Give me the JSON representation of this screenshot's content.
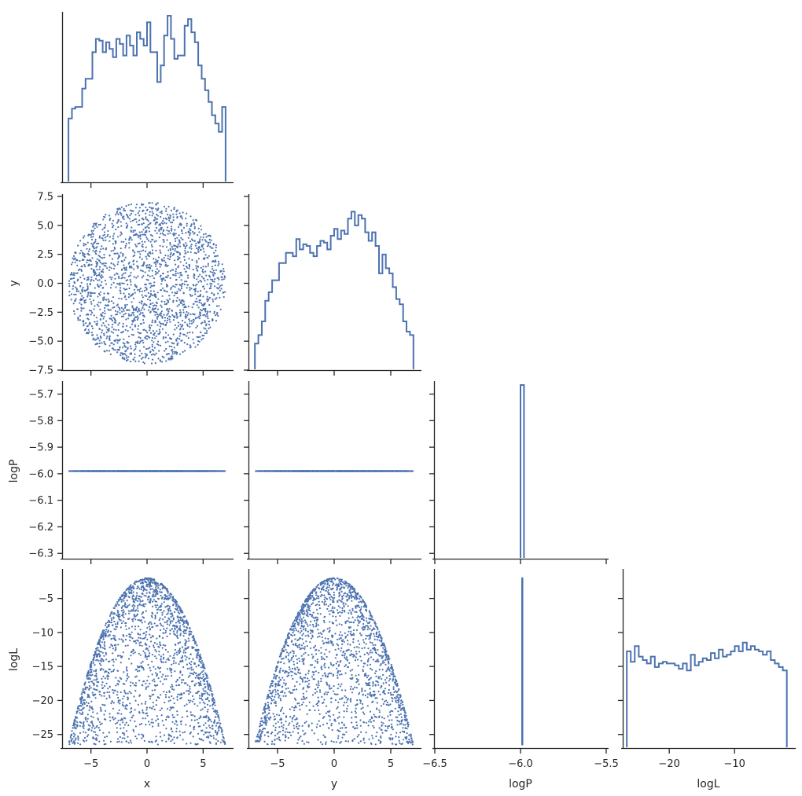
{
  "chart_data": {
    "type": "scatter",
    "layout": "corner pair plot (lower triangle scatter, diagonal step histograms)",
    "variables": [
      "x",
      "y",
      "logP",
      "logL"
    ],
    "series_color": "#4c72b0",
    "grid": false,
    "ranges": {
      "x": [
        -7.5,
        7.5
      ],
      "y": [
        -7.5,
        7.5
      ],
      "logP": [
        -6.5,
        -5.5
      ],
      "logL": [
        -27.0,
        -1.0
      ]
    },
    "logP_axis_range_in_row": [
      -6.32,
      -5.66
    ],
    "xlabels": [
      "x",
      "y",
      "logP",
      "logL"
    ],
    "ylabels": [
      "",
      "y",
      "logP",
      "logL"
    ],
    "xticks": {
      "x": [
        -5,
        0,
        5
      ],
      "y": [
        -5,
        0,
        5
      ],
      "logP": [
        -6.5,
        -6.0,
        -5.5
      ],
      "logL": [
        -20,
        -10
      ]
    },
    "xtick_labels": {
      "x": [
        "−5",
        "0",
        "5"
      ],
      "y": [
        "−5",
        "0",
        "5"
      ],
      "logP": [
        "−6.5",
        "−6.0",
        "−5.5"
      ],
      "logL": [
        "−20",
        "−10"
      ]
    },
    "yticks": {
      "y": [
        -7.5,
        -5.0,
        -2.5,
        0.0,
        2.5,
        5.0,
        7.5
      ],
      "logP": [
        -6.3,
        -6.2,
        -6.1,
        -6.0,
        -5.9,
        -5.8,
        -5.7
      ],
      "logL": [
        -25,
        -20,
        -15,
        -10,
        -5
      ]
    },
    "ytick_labels": {
      "y": [
        "−7.5",
        "−5.0",
        "−2.5",
        "0.0",
        "2.5",
        "5.0",
        "7.5"
      ],
      "logP": [
        "−6.3",
        "−6.2",
        "−6.1",
        "−6.0",
        "−5.9",
        "−5.8",
        "−5.7"
      ],
      "logL": [
        "−25",
        "−20",
        "−15",
        "−10",
        "−5"
      ]
    },
    "samples": {
      "count": 2000,
      "description": "points uniformly distributed in a disc of radius 7 centred at (0,0)",
      "logP_constant": -5.99,
      "logL_formula": "logL = -2 - 0.5 * (x^2 + y^2)"
    },
    "histograms": {
      "x": {
        "range": [
          -7.0,
          7.0
        ],
        "counts": [
          0.38,
          0.44,
          0.45,
          0.45,
          0.56,
          0.62,
          0.62,
          0.78,
          0.86,
          0.85,
          0.78,
          0.84,
          0.8,
          0.75,
          0.86,
          0.83,
          0.76,
          0.88,
          0.82,
          0.76,
          0.9,
          0.86,
          0.82,
          0.96,
          0.78,
          0.78,
          0.6,
          0.7,
          0.88,
          1.0,
          0.86,
          0.74,
          0.76,
          0.76,
          0.94,
          0.98,
          0.9,
          0.84,
          0.7,
          0.62,
          0.55,
          0.48,
          0.4,
          0.35,
          0.3,
          0.45
        ]
      },
      "y": {
        "range": [
          -7.0,
          7.0
        ],
        "counts": [
          0.15,
          0.2,
          0.28,
          0.4,
          0.45,
          0.52,
          0.52,
          0.62,
          0.62,
          0.68,
          0.68,
          0.66,
          0.76,
          0.7,
          0.73,
          0.72,
          0.68,
          0.66,
          0.72,
          0.75,
          0.74,
          0.7,
          0.78,
          0.82,
          0.76,
          0.81,
          0.79,
          0.88,
          0.92,
          0.84,
          0.9,
          0.88,
          0.8,
          0.75,
          0.8,
          0.72,
          0.56,
          0.67,
          0.59,
          0.56,
          0.48,
          0.41,
          0.38,
          0.28,
          0.22,
          0.2
        ]
      },
      "logP": {
        "range": [
          -6.0,
          -5.98
        ],
        "counts": [
          1.0
        ]
      },
      "logL": {
        "range": [
          -26.5,
          -2.0
        ],
        "counts": [
          0.55,
          0.49,
          0.58,
          0.52,
          0.5,
          0.48,
          0.52,
          0.46,
          0.48,
          0.49,
          0.48,
          0.48,
          0.47,
          0.45,
          0.48,
          0.44,
          0.53,
          0.47,
          0.49,
          0.51,
          0.5,
          0.54,
          0.51,
          0.56,
          0.52,
          0.53,
          0.55,
          0.58,
          0.55,
          0.6,
          0.56,
          0.58,
          0.56,
          0.55,
          0.53,
          0.55,
          0.5,
          0.48,
          0.46,
          0.44
        ]
      }
    }
  }
}
